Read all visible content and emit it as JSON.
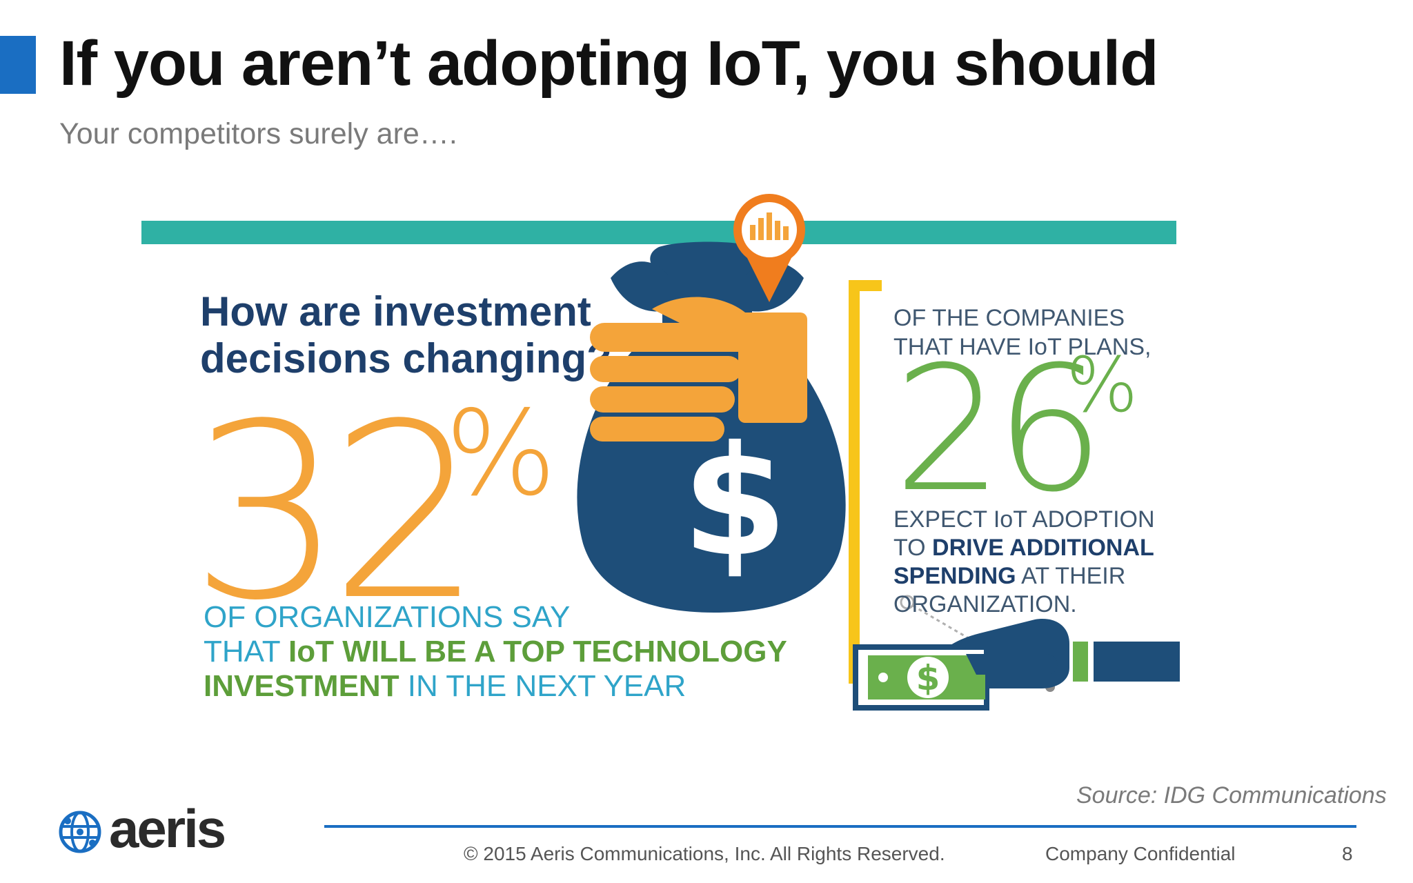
{
  "slide": {
    "title": "If you aren’t adopting IoT, you should",
    "subtitle": "Your competitors surely are….",
    "accent_color": "#1a6ec2"
  },
  "infographic": {
    "question_line1": "How are investment",
    "question_line2": "decisions changing?",
    "left_number": "32",
    "left_percent": "%",
    "left_text": {
      "line1": "OF ORGANIZATIONS SAY",
      "line2_prefix": "THAT ",
      "line2_bold": "IoT WILL BE A TOP TECHNOLOGY",
      "line3_bold": "INVESTMENT",
      "line3_suffix": " IN THE NEXT YEAR"
    },
    "right_top_line1": "OF THE COMPANIES",
    "right_top_line2": "THAT HAVE IoT PLANS,",
    "right_number": "26",
    "right_percent": "%",
    "right_bottom": {
      "line1": "EXPECT IoT ADOPTION",
      "line2_prefix": "TO ",
      "line2_bold": "DRIVE ADDITIONAL",
      "line3_bold": "SPENDING",
      "line3_suffix": " AT THEIR",
      "line4": "ORGANIZATION."
    },
    "dollar_sign": "$",
    "colors": {
      "teal": "#2fb1a4",
      "orange": "#f4a43a",
      "navy": "#1e4e79",
      "green": "#6ab04c",
      "yellow": "#f7c51a",
      "pin_orange": "#f07d1e"
    }
  },
  "footer": {
    "source": "Source: IDG Communications",
    "copyright": "© 2015 Aeris Communications, Inc. All Rights Reserved.",
    "confidential": "Company Confidential",
    "page_number": "8",
    "logo_text": "aeris",
    "logo_icon": "globe-network-icon"
  }
}
